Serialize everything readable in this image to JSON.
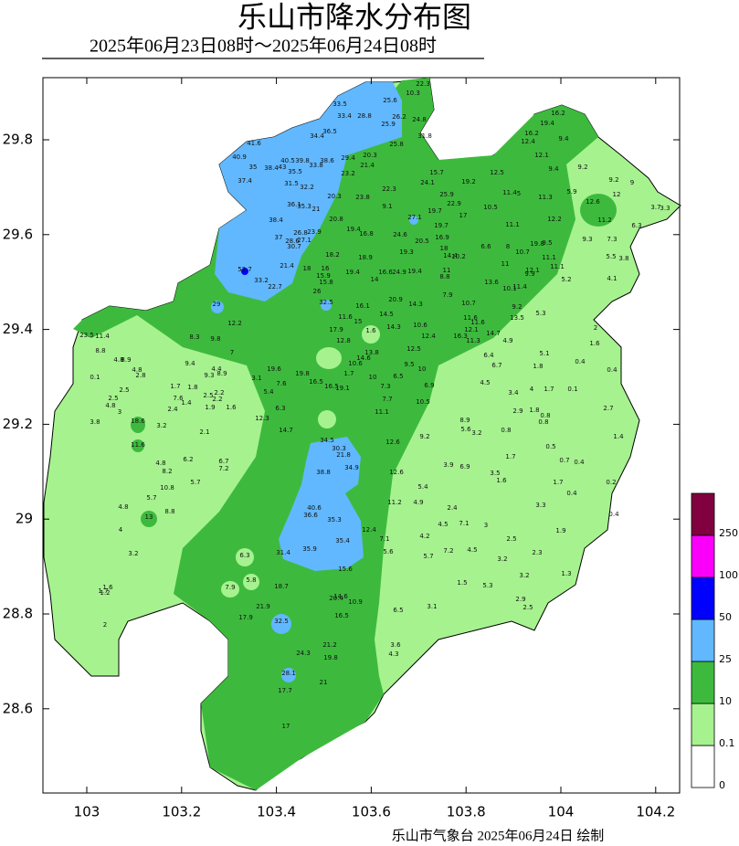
{
  "header": {
    "title": "乐山市降水分布图",
    "subtitle": "2025年06月23日08时～2025年06月24日08时"
  },
  "map": {
    "lon_ticks": [
      103,
      103.2,
      103.4,
      103.6,
      103.8,
      104,
      104.2
    ],
    "lat_ticks": [
      28.6,
      28.8,
      29,
      29.2,
      29.4,
      29.6,
      29.8
    ],
    "legend": {
      "levels": [
        0,
        0.1,
        10,
        25,
        50,
        100,
        250
      ],
      "colors": [
        "#ffffff",
        "#a6f28f",
        "#3dba3d",
        "#61b8ff",
        "#0000fe",
        "#fa00fa",
        "#800040"
      ]
    },
    "stations": [
      "22.3",
      "10.3",
      "33.5",
      "25.6",
      "33.4",
      "28.8",
      "26.2",
      "24.8",
      "25.9",
      "36.5",
      "34.4",
      "31.8",
      "25.8",
      "41.6",
      "40.9",
      "40.5",
      "39.8",
      "38.6",
      "29.4",
      "20.3",
      "35",
      "38.4",
      "43",
      "35.5",
      "33.8",
      "21.4",
      "23.2",
      "37.4",
      "31.5",
      "32.2",
      "15.7",
      "24.1",
      "19.2",
      "12.5",
      "22.3",
      "20.3",
      "23.8",
      "25.9",
      "11.4",
      "5",
      "16.2",
      "19.4",
      "16.2",
      "12.4",
      "9.4",
      "12.1",
      "9.4",
      "9.2",
      "9.2",
      "9",
      "5.9",
      "11.3",
      "12.6",
      "12",
      "3.7",
      "3.3",
      "36.1",
      "35.3",
      "21",
      "9.1",
      "22.9",
      "10.5",
      "38.4",
      "20.8",
      "27.1",
      "19.7",
      "17",
      "12.2",
      "11.2",
      "6.3",
      "11.1",
      "26.8",
      "23.9",
      "37",
      "19.4",
      "16.8",
      "24.6",
      "19.7",
      "28.6",
      "27.1",
      "20.5",
      "16.9",
      "30.7",
      "19.3",
      "18",
      "6.6",
      "8",
      "10.7",
      "19.8",
      "9.5",
      "9.3",
      "7.3",
      "18.2",
      "18.9",
      "14.4",
      "10.2",
      "11.1",
      "5.5",
      "3.8",
      "21.4",
      "18",
      "16",
      "11",
      "53.7",
      "19.4",
      "16.6",
      "24.9",
      "19.4",
      "11",
      "12.1",
      "11.1",
      "15.9",
      "14",
      "8.8",
      "9.9",
      "5.2",
      "4.1",
      "33.2",
      "15.8",
      "13.6",
      "22.7",
      "10.1",
      "11.4",
      "26",
      "7.9",
      "29",
      "16.1",
      "20.9",
      "14.3",
      "10.7",
      "9.2",
      "5.3",
      "32.5",
      "11.6",
      "14.5",
      "12.2",
      "15",
      "14.3",
      "10.6",
      "11.6",
      "11.6",
      "13.5",
      "2",
      "17.9",
      "1.6",
      "12.4",
      "12.1",
      "11.4",
      "23.5",
      "8.3",
      "9.8",
      "12.8",
      "16.3",
      "11.3",
      "14.7",
      "4.9",
      "1.6",
      "8.8",
      "7",
      "13.8",
      "12.5",
      "6.4",
      "5.1",
      "0.4",
      "4.8",
      "8.9",
      "9.4",
      "14.6",
      "10.6",
      "9.5",
      "10",
      "6.7",
      "1.8",
      "0.4",
      "0.1",
      "2.8",
      "4.4",
      "8.9",
      "9.3",
      "19.6",
      "19.8",
      "1.7",
      "10",
      "6.5",
      "4.8",
      "3.1",
      "7.6",
      "16.5",
      "16.5",
      "19.1",
      "7.3",
      "6.9",
      "4.5",
      "3.4",
      "4",
      "1.7",
      "0.1",
      "2.5",
      "1.7",
      "1.8",
      "2.5",
      "2.2",
      "5.4",
      "2.5",
      "7.6",
      "2.2",
      "10.5",
      "7.7",
      "4.8",
      "1.4",
      "1.9",
      "1.6",
      "6.3",
      "2.4",
      "3",
      "11.1",
      "2.9",
      "1.8",
      "0.8",
      "2.7",
      "12.3",
      "8.9",
      "3.8",
      "18.6",
      "3.2",
      "0.8",
      "5.6",
      "3.2",
      "0.8",
      "14.7",
      "2.1",
      "9.2",
      "1.4",
      "11.6",
      "34.5",
      "30.3",
      "12.6",
      "0.5",
      "21.8",
      "1.7",
      "6.2",
      "6.7",
      "4.8",
      "7.2",
      "34.9",
      "3.9",
      "6.9",
      "0.7",
      "0.4",
      "8.2",
      "38.8",
      "12.6",
      "3.5",
      "1.6",
      "5.7",
      "1.7",
      "0.2",
      "10.8",
      "5.4",
      "0.4",
      "5.7",
      "11.2",
      "4.9",
      "4.8",
      "40.6",
      "8.8",
      "2.4",
      "3.3",
      "36.6",
      "35.3",
      "0.4",
      "13",
      "4.5",
      "7.1",
      "3",
      "4",
      "12.4",
      "1.9",
      "4.2",
      "35.4",
      "7.1",
      "2.5",
      "35.9",
      "31.4",
      "6.3",
      "5.6",
      "7.2",
      "4.5",
      "5.7",
      "2.3",
      "3.2",
      "3.2",
      "15.6",
      "3.2",
      "1.3",
      "5.8",
      "1.5",
      "5.3",
      "18.7",
      "7.9",
      "1.6",
      "1.7",
      "1.2",
      "20.4",
      "14.6",
      "10.9",
      "2.9",
      "21.9",
      "2.5",
      "3.1",
      "6.5",
      "16.5",
      "17.9",
      "32.5",
      "2",
      "21.2",
      "3.6",
      "4.3",
      "24.3",
      "19.8",
      "28.1",
      "21",
      "17.7",
      "17"
    ]
  },
  "footer": "乐山市气象台  2025年06月24日  绘制"
}
